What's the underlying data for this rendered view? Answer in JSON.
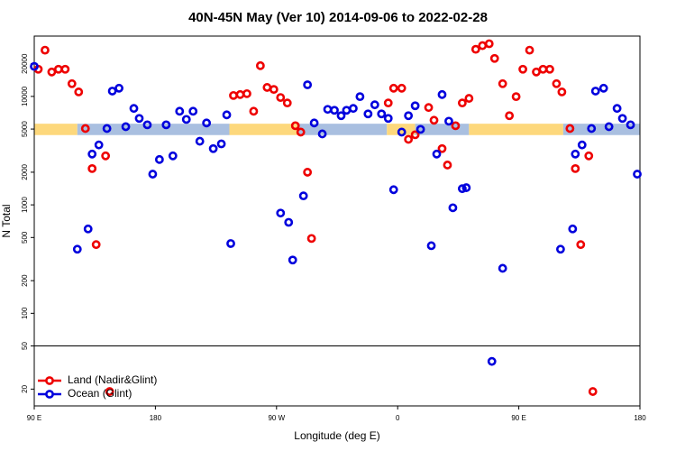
{
  "chart_data": {
    "type": "scatter",
    "title": "40N-45N May (Ver 10)   2014-09-06 to 2022-02-28",
    "xlabel": "Longitude (deg E)",
    "ylabel": "N Total",
    "xlim": [
      -270,
      180
    ],
    "xticks": [
      {
        "value": -270,
        "label": "90 E"
      },
      {
        "value": -180,
        "label": "180"
      },
      {
        "value": -90,
        "label": "90 W"
      },
      0,
      {
        "value": 90,
        "label": "90 E"
      },
      180
    ],
    "ylim": [
      14,
      36000
    ],
    "yticks": [
      20,
      50,
      100,
      200,
      500,
      1000,
      2000,
      5000,
      10000,
      20000
    ],
    "log_y": true,
    "hline": 50,
    "legend": "lower left",
    "mask_ylim": [
      4400,
      5600
    ],
    "mask": [
      {
        "x": [
          -270,
          -238
        ],
        "color": "#fdd87c"
      },
      {
        "x": [
          -238,
          -125
        ],
        "color": "#a9bfe0"
      },
      {
        "x": [
          -125,
          -74
        ],
        "color": "#fdd87c"
      },
      {
        "x": [
          -74,
          -8
        ],
        "color": "#a9bfe0"
      },
      {
        "x": [
          -8,
          13
        ],
        "color": "#fdd87c"
      },
      {
        "x": [
          13,
          53
        ],
        "color": "#a9bfe0"
      },
      {
        "x": [
          53,
          123
        ],
        "color": "#fdd87c"
      },
      {
        "x": [
          123,
          180
        ],
        "color": "#a9bfe0"
      }
    ],
    "series": [
      {
        "name": "Land (Nadir&Glint)",
        "color": "#ee0000",
        "x": [
          -267,
          -262,
          -257,
          -252,
          -247,
          -242,
          -237,
          -232,
          -227,
          -224,
          -217,
          -214,
          -122,
          -117,
          -112,
          -107,
          -102,
          -97,
          -92,
          -87,
          -82,
          -76,
          -72,
          -67,
          -64,
          -7,
          -3,
          3,
          8,
          13,
          23,
          27,
          33,
          37,
          43,
          48,
          53,
          58,
          63,
          68,
          72,
          78,
          83,
          88,
          93,
          98,
          103,
          108,
          113,
          118,
          122,
          128,
          132,
          136,
          142,
          145
        ],
        "values": [
          17800,
          26700,
          16800,
          17800,
          17800,
          13100,
          11000,
          5060,
          2160,
          430,
          2830,
          19,
          10200,
          10400,
          10600,
          7300,
          19200,
          12100,
          11600,
          9770,
          8700,
          5370,
          4690,
          2000,
          490,
          8700,
          11900,
          11900,
          4020,
          4430,
          7900,
          6030,
          3300,
          2330,
          5370,
          8700,
          9590,
          27200,
          29400,
          30600,
          22400,
          13100,
          6640,
          9950,
          17800,
          26700,
          16800,
          17800,
          17800,
          13100,
          11000,
          5060,
          2160,
          430,
          2830,
          19
        ]
      },
      {
        "name": "Ocean (Glint)",
        "color": "#0000dd",
        "x": [
          -270,
          -238,
          -230,
          -227,
          -222,
          -216,
          -212,
          -207,
          -202,
          -196,
          -192,
          -186,
          -182,
          -177,
          -172,
          -167,
          -162,
          -157,
          -152,
          -147,
          -142,
          -137,
          -131,
          -127,
          -124,
          -87,
          -81,
          -78,
          -70,
          -67,
          -62,
          -56,
          -52,
          -47,
          -42,
          -38,
          -33,
          -28,
          -22,
          -17,
          -12,
          -7,
          -3,
          3,
          8,
          13,
          17,
          25,
          29,
          33,
          38,
          41,
          48,
          51,
          70,
          78,
          121,
          130,
          132,
          137,
          144,
          147,
          153,
          157,
          163,
          167,
          173,
          178
        ],
        "values": [
          18900,
          390,
          600,
          2940,
          3570,
          5060,
          11200,
          11900,
          5260,
          7750,
          6270,
          5470,
          1920,
          2620,
          5470,
          2830,
          7300,
          6140,
          7300,
          3860,
          5690,
          3300,
          3650,
          6760,
          440,
          840,
          690,
          310,
          1210,
          12800,
          5690,
          4510,
          7600,
          7450,
          6640,
          7450,
          7750,
          9950,
          6900,
          8370,
          6900,
          6270,
          1380,
          4690,
          6640,
          8200,
          4970,
          420,
          2940,
          10400,
          5910,
          940,
          1410,
          1440,
          36,
          260,
          390,
          600,
          2940,
          3570,
          5060,
          11200,
          11900,
          5260,
          7750,
          6270,
          5470,
          1920
        ]
      }
    ]
  }
}
